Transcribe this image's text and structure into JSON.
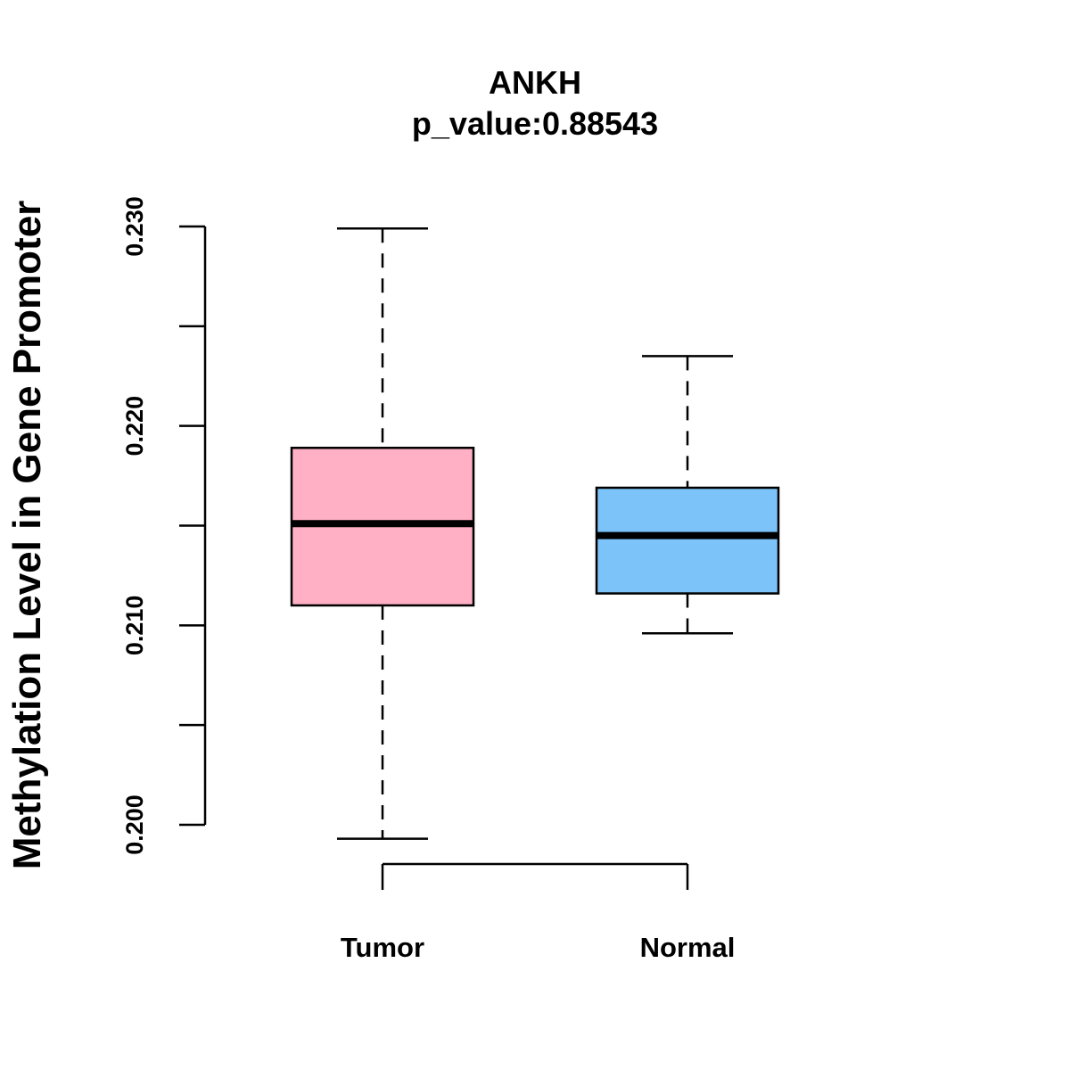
{
  "chart_data": {
    "type": "box",
    "title": "ANKH",
    "subtitle": "p_value:0.88543",
    "xlabel": "",
    "ylabel": "Methylation Level in Gene Promoter",
    "ylim": [
      0.2,
      0.23
    ],
    "yticks": [
      0.2,
      0.205,
      0.21,
      0.215,
      0.22,
      0.225,
      0.23
    ],
    "ytick_labels": [
      "0.200",
      "0.210",
      "0.220",
      "0.230"
    ],
    "ytick_label_values": [
      0.2,
      0.21,
      0.22,
      0.23
    ],
    "grid": false,
    "categories": [
      "Tumor",
      "Normal"
    ],
    "boxes": [
      {
        "name": "Tumor",
        "min": 0.1993,
        "q1": 0.211,
        "median": 0.2151,
        "q3": 0.2189,
        "max": 0.2299,
        "color": "#FFB0C4"
      },
      {
        "name": "Normal",
        "min": 0.2096,
        "q1": 0.2116,
        "median": 0.2145,
        "q3": 0.2169,
        "max": 0.2235,
        "color": "#7BC3F8"
      }
    ]
  }
}
